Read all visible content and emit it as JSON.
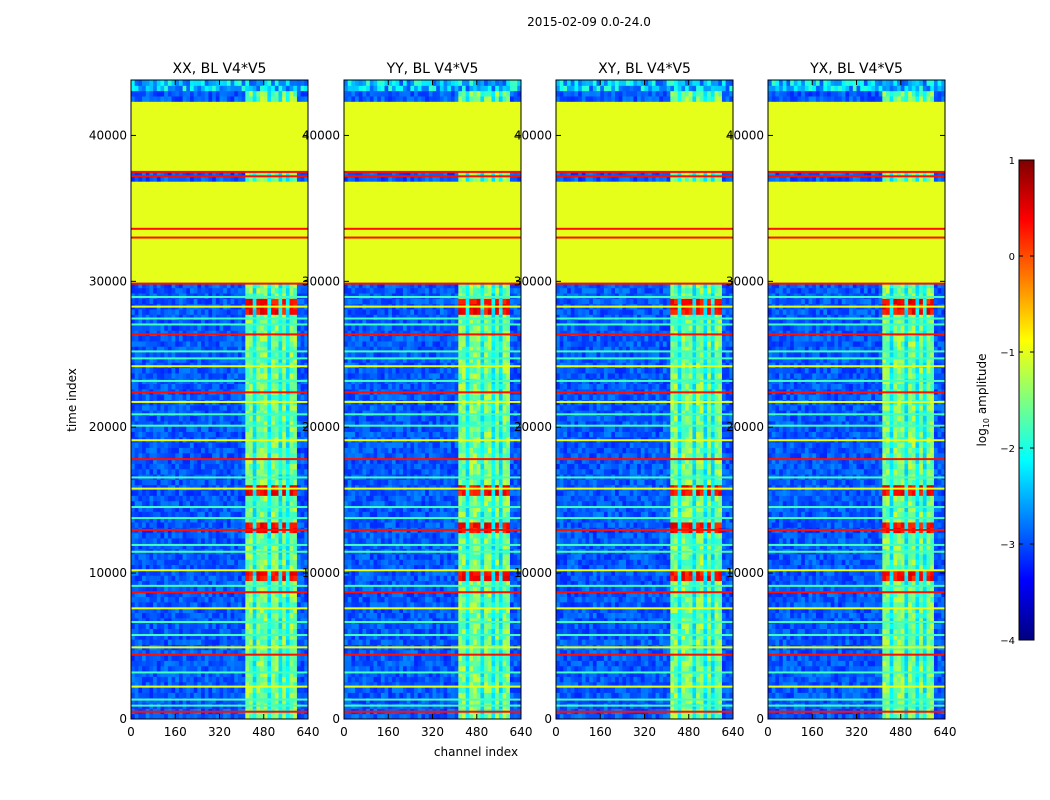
{
  "figure": {
    "suptitle": "2015-02-09 0.0-24.0"
  },
  "chart_data": {
    "type": "heatmap",
    "panels": [
      {
        "title": "XX, BL V4*V5",
        "key": "XX"
      },
      {
        "title": "YY, BL V4*V5",
        "key": "YY"
      },
      {
        "title": "XY, BL V4*V5",
        "key": "XY"
      },
      {
        "title": "YX, BL V4*V5",
        "key": "YX"
      }
    ],
    "xlabel": "channel index",
    "ylabel": "time index",
    "xlim": [
      0,
      640
    ],
    "ylim": [
      0,
      43800
    ],
    "xticks": [
      0,
      160,
      320,
      480,
      640
    ],
    "yticks": [
      0,
      10000,
      20000,
      30000,
      40000
    ],
    "colorbar": {
      "label": "log10 amplitude",
      "label_main": "log",
      "label_sub": "10",
      "label_rest": " amplitude",
      "range": [
        -4,
        1
      ],
      "ticks": [
        -4,
        -3,
        -2,
        -1,
        0,
        1
      ],
      "tick_labels": [
        "−4",
        "−3",
        "−2",
        "−1",
        "0",
        "1"
      ],
      "colormap": "jet"
    },
    "features": {
      "flagged_constant_level": -1.0,
      "flagged_time_ranges": [
        [
          30000,
          37000
        ],
        [
          37700,
          42300
        ]
      ],
      "band_channel_range": [
        410,
        600
      ],
      "band_gap_channels": [
        450,
        495,
        540,
        570
      ],
      "strong_time_ranges": [
        [
          12600,
          13500
        ],
        [
          9600,
          10200
        ],
        [
          15500,
          15900
        ],
        [
          27600,
          29000
        ]
      ]
    }
  }
}
